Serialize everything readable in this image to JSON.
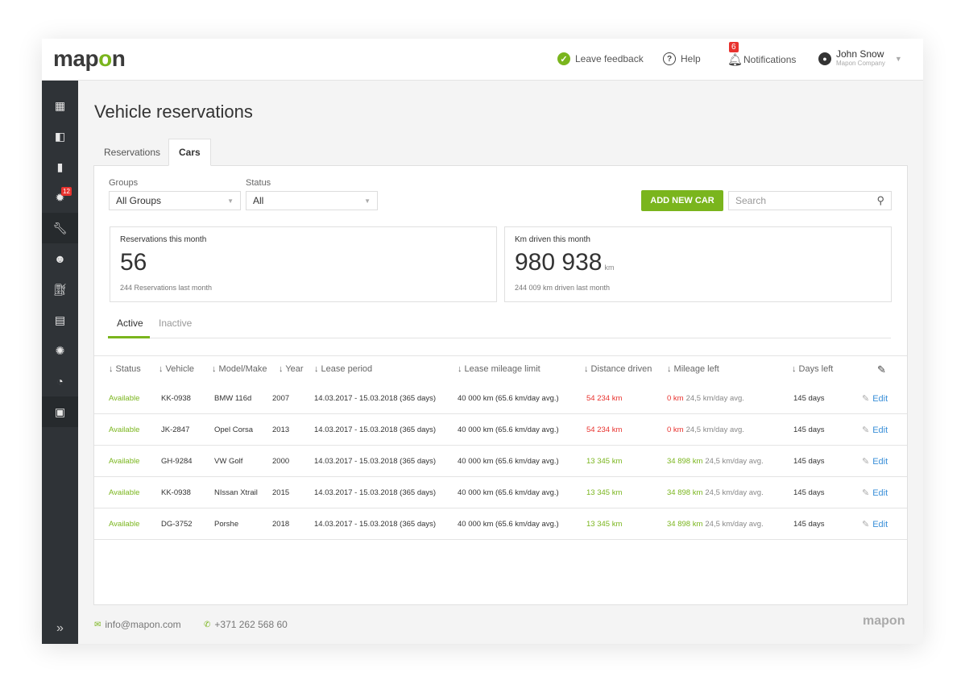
{
  "brand": {
    "logo_prefix": "map",
    "logo_o": "o",
    "logo_suffix": "n"
  },
  "header": {
    "feedback": "Leave feedback",
    "help": "Help",
    "notifications": "Notifications",
    "notifications_count": "6",
    "user_name": "John Snow",
    "user_company": "Mapon Company"
  },
  "sidebar": {
    "items": [
      {
        "icon": "dashboard-icon",
        "glyph": "▦"
      },
      {
        "icon": "map-icon",
        "glyph": "▮"
      },
      {
        "icon": "document-icon",
        "glyph": "▮"
      },
      {
        "icon": "alerts-icon",
        "glyph": "✱",
        "badge": "12"
      },
      {
        "icon": "wrench-icon",
        "glyph": "✎"
      },
      {
        "icon": "user-icon",
        "glyph": "●"
      },
      {
        "icon": "fuel-icon",
        "glyph": "▮"
      },
      {
        "icon": "clipboard-icon",
        "glyph": "▤"
      },
      {
        "icon": "settings-icon",
        "glyph": "✺"
      },
      {
        "icon": "speedometer-icon",
        "glyph": "◔"
      },
      {
        "icon": "calendar-icon",
        "glyph": "▣"
      }
    ],
    "expand": "»"
  },
  "page": {
    "title": "Vehicle reservations"
  },
  "tabs": [
    "Reservations",
    "Cars"
  ],
  "filters": {
    "groups_label": "Groups",
    "groups_value": "All Groups",
    "status_label": "Status",
    "status_value": "All",
    "add_button": "ADD NEW CAR",
    "search_placeholder": "Search"
  },
  "stats": [
    {
      "label": "Reservations this month",
      "value": "56",
      "unit": "",
      "sub": "244 Reservations last month"
    },
    {
      "label": "Km driven this month",
      "value": "980 938",
      "unit": "km",
      "sub": "244 009 km driven last month"
    }
  ],
  "subtabs": {
    "active": "Active",
    "inactive": "Inactive"
  },
  "table": {
    "columns": [
      "↓ Status",
      "↓ Vehicle",
      "↓ Model/Make",
      "↓ Year",
      "↓ Lease period",
      "↓ Lease mileage limit",
      "↓ Distance driven",
      "↓ Mileage left",
      "↓ Days left"
    ],
    "edit_label": "Edit",
    "rows": [
      {
        "status": "Available",
        "vehicle": "KK-0938",
        "model": "BMW 116d",
        "year": "2007",
        "lease": "14.03.2017 - 15.03.2018 (365 days)",
        "limit": "40 000 km (65.6 km/day avg.)",
        "distance": "54 234 km",
        "distance_color": "red",
        "left": "0 km",
        "left_color": "red",
        "left_avg": "24,5 km/day avg.",
        "days": "145 days"
      },
      {
        "status": "Available",
        "vehicle": "JK-2847",
        "model": "Opel Corsa",
        "year": "2013",
        "lease": "14.03.2017 - 15.03.2018 (365 days)",
        "limit": "40 000 km (65.6 km/day avg.)",
        "distance": "54 234 km",
        "distance_color": "red",
        "left": "0 km",
        "left_color": "red",
        "left_avg": "24,5 km/day avg.",
        "days": "145 days"
      },
      {
        "status": "Available",
        "vehicle": "GH-9284",
        "model": "VW Golf",
        "year": "2000",
        "lease": "14.03.2017 - 15.03.2018 (365 days)",
        "limit": "40 000 km (65.6 km/day avg.)",
        "distance": "13 345 km",
        "distance_color": "green",
        "left": "34 898 km",
        "left_color": "green",
        "left_avg": "24,5 km/day avg.",
        "days": "145 days"
      },
      {
        "status": "Available",
        "vehicle": "KK-0938",
        "model": "NIssan Xtrail",
        "year": "2015",
        "lease": "14.03.2017 - 15.03.2018 (365 days)",
        "limit": "40 000 km (65.6 km/day avg.)",
        "distance": "13 345 km",
        "distance_color": "green",
        "left": "34 898 km",
        "left_color": "green",
        "left_avg": "24,5 km/day avg.",
        "days": "145 days"
      },
      {
        "status": "Available",
        "vehicle": "DG-3752",
        "model": "Porshe",
        "year": "2018",
        "lease": "14.03.2017 - 15.03.2018 (365 days)",
        "limit": "40 000 km (65.6 km/day avg.)",
        "distance": "13 345 km",
        "distance_color": "green",
        "left": "34 898 km",
        "left_color": "green",
        "left_avg": "24,5 km/day avg.",
        "days": "145 days"
      }
    ]
  },
  "footer": {
    "email": "info@mapon.com",
    "phone": "+371 262 568 60",
    "logo_prefix": "map",
    "logo_o": "o",
    "logo_suffix": "n"
  },
  "colors": {
    "accent": "#7ab51d",
    "danger": "#e8322e",
    "link": "#3a8fd8",
    "sidebar": "#2f3337"
  }
}
